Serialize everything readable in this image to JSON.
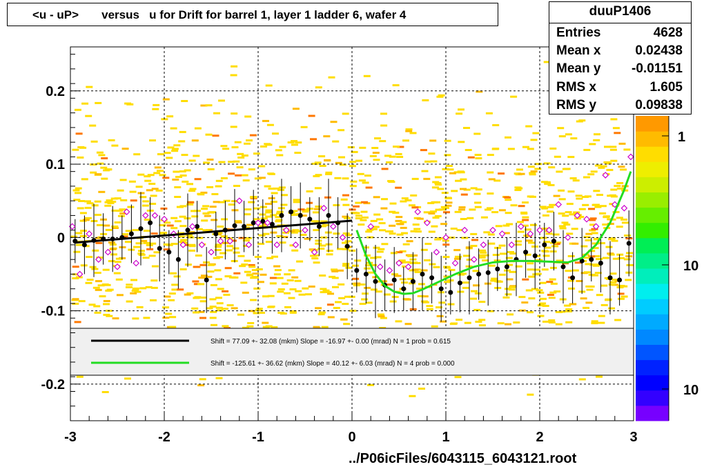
{
  "title": "<u - uP>       versus   u for Drift for barrel 1, layer 1 ladder 6, wafer 4",
  "footer": "../P06icFiles/6043115_6043121.root",
  "stats": {
    "name": "duuP1406",
    "rows": [
      {
        "label": "Entries",
        "value": "4628"
      },
      {
        "label": "Mean x",
        "value": "0.02438"
      },
      {
        "label": "Mean y",
        "value": "-0.01151"
      },
      {
        "label": "RMS x",
        "value": "1.605"
      },
      {
        "label": "RMS y",
        "value": "0.09838"
      }
    ]
  },
  "legend": {
    "entries": [
      {
        "text": "Shift =   77.09 +- 32.08 (mkm) Slope =   -16.97 +- 0.00 (mrad)  N = 1 prob = 0.615",
        "color": "#000000"
      },
      {
        "text": "Shift =  -125.61 +- 36.62 (mkm) Slope =    40.12 +- 6.03 (mrad)  N = 4 prob = 0.000",
        "color": "#22dd22"
      }
    ]
  },
  "zaxis": {
    "labels": [
      "1",
      "10",
      "10"
    ],
    "colors": [
      "#7700ff",
      "#3300ff",
      "#0000ff",
      "#0022ff",
      "#0055ff",
      "#0088ff",
      "#00aaff",
      "#00ccff",
      "#00eeee",
      "#00eebb",
      "#00ee88",
      "#00ee55",
      "#33ee00",
      "#66ee00",
      "#99ee00",
      "#ccee00",
      "#eeee00",
      "#ffdd00",
      "#ffbb00",
      "#ff9900"
    ]
  },
  "chart_data": {
    "type": "scatter",
    "title": "<u - uP>       versus   u for Drift for barrel 1, layer 1 ladder 6, wafer 4",
    "xlabel": "",
    "ylabel": "",
    "xlim": [
      -3,
      3
    ],
    "ylim": [
      -0.25,
      0.26
    ],
    "x_ticks": [
      -3,
      -2,
      -1,
      0,
      1,
      2,
      3
    ],
    "y_ticks": [
      -0.2,
      -0.1,
      0,
      0.1,
      0.2
    ],
    "y_tick_labels": [
      "-0.2",
      "-0.1",
      "0",
      "0.1",
      "0.2"
    ],
    "grid": true,
    "series": [
      {
        "name": "profile",
        "color": "#000000",
        "x": [
          -2.95,
          -2.85,
          -2.75,
          -2.65,
          -2.55,
          -2.45,
          -2.35,
          -2.25,
          -2.15,
          -2.05,
          -1.95,
          -1.85,
          -1.75,
          -1.65,
          -1.55,
          -1.45,
          -1.35,
          -1.25,
          -1.15,
          -1.05,
          -0.95,
          -0.85,
          -0.75,
          -0.65,
          -0.55,
          -0.45,
          -0.35,
          -0.25,
          -0.15,
          -0.05,
          0.05,
          0.15,
          0.25,
          0.35,
          0.45,
          0.55,
          0.65,
          0.75,
          0.85,
          0.95,
          1.05,
          1.15,
          1.25,
          1.35,
          1.45,
          1.55,
          1.65,
          1.75,
          1.85,
          1.95,
          2.05,
          2.15,
          2.25,
          2.35,
          2.45,
          2.55,
          2.65,
          2.75,
          2.85,
          2.95
        ],
        "y": [
          -0.005,
          -0.01,
          -0.004,
          -0.002,
          -0.002,
          0.0,
          0.005,
          0.012,
          0.02,
          -0.015,
          -0.02,
          -0.03,
          0.01,
          0.015,
          -0.058,
          0.005,
          0.01,
          0.016,
          0.015,
          0.02,
          0.022,
          0.018,
          0.03,
          0.035,
          0.03,
          0.025,
          0.015,
          0.03,
          0.02,
          -0.012,
          -0.045,
          -0.05,
          -0.06,
          -0.065,
          -0.058,
          -0.07,
          -0.06,
          -0.05,
          -0.055,
          -0.07,
          -0.075,
          -0.062,
          -0.055,
          -0.05,
          -0.048,
          -0.043,
          -0.04,
          -0.03,
          -0.02,
          -0.025,
          -0.01,
          -0.005,
          -0.04,
          -0.055,
          -0.032,
          -0.03,
          -0.035,
          -0.055,
          -0.058,
          -0.008
        ]
      },
      {
        "name": "open markers",
        "color": "#cc00cc",
        "x": [
          -2.98,
          -2.9,
          -2.8,
          -2.7,
          -2.6,
          -2.5,
          -2.4,
          -2.3,
          -2.2,
          -2.1,
          -2.0,
          -1.9,
          -1.8,
          -1.7,
          -1.6,
          -1.5,
          -1.4,
          -1.3,
          -1.2,
          -1.1,
          -1.0,
          -0.9,
          -0.8,
          -0.7,
          -0.6,
          -0.5,
          -0.4,
          -0.3,
          -0.2,
          -0.1,
          0.2,
          0.3,
          0.4,
          0.5,
          0.6,
          0.7,
          0.8,
          0.9,
          1.0,
          1.1,
          1.2,
          1.3,
          1.4,
          1.5,
          1.6,
          1.7,
          1.8,
          1.9,
          2.0,
          2.1,
          2.2,
          2.3,
          2.4,
          2.5,
          2.6,
          2.7,
          2.8,
          2.9,
          2.97
        ],
        "y": [
          0.015,
          -0.05,
          0.005,
          -0.03,
          -0.02,
          -0.04,
          0.035,
          -0.035,
          0.03,
          0.03,
          0.025,
          0.005,
          -0.01,
          0.015,
          -0.01,
          -0.02,
          -0.005,
          -0.005,
          0.05,
          -0.01,
          0.02,
          0.02,
          -0.01,
          0.01,
          -0.01,
          0.01,
          -0.02,
          0.04,
          0.015,
          0.0,
          0.015,
          -0.04,
          -0.045,
          -0.035,
          -0.04,
          0.035,
          0.02,
          -0.02,
          0.0,
          -0.035,
          0.01,
          -0.03,
          -0.01,
          0.01,
          0.005,
          -0.01,
          0.015,
          0.005,
          0.01,
          0.01,
          0.045,
          0.0,
          0.03,
          0.025,
          0.015,
          0.085,
          0.045,
          0.04,
          0.11
        ]
      },
      {
        "name": "fit u<0",
        "color": "#000000",
        "x": [
          -2.95,
          0.0
        ],
        "y": [
          -0.007,
          0.023
        ]
      },
      {
        "name": "fit u>0",
        "color": "#22dd22",
        "x": [
          0.05,
          0.15,
          0.25,
          0.35,
          0.45,
          0.55,
          0.65,
          0.75,
          0.9,
          1.1,
          1.3,
          1.5,
          1.7,
          1.9,
          2.1,
          2.3,
          2.45,
          2.6,
          2.75,
          2.9,
          2.97
        ],
        "y": [
          0.01,
          -0.025,
          -0.05,
          -0.066,
          -0.074,
          -0.077,
          -0.076,
          -0.071,
          -0.062,
          -0.05,
          -0.04,
          -0.034,
          -0.032,
          -0.032,
          -0.033,
          -0.034,
          -0.028,
          -0.01,
          0.02,
          0.065,
          0.09
        ]
      }
    ]
  }
}
